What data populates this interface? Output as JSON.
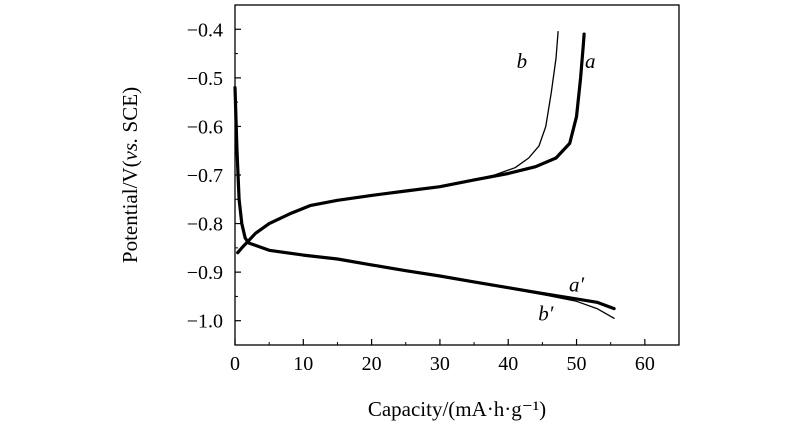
{
  "chart_data": {
    "type": "line",
    "title": "",
    "xlabel": "Capacity/(mA·h·g⁻¹)",
    "ylabel_parts": {
      "pre": "Potential/V(",
      "italic": "vs.",
      "post": " SCE)"
    },
    "xlim": [
      0,
      65
    ],
    "ylim": [
      -1.05,
      -0.35
    ],
    "x_ticks": [
      0,
      10,
      20,
      30,
      40,
      50,
      60
    ],
    "x_tick_labels": [
      "0",
      "10",
      "20",
      "30",
      "40",
      "50",
      "60"
    ],
    "y_ticks": [
      -0.4,
      -0.5,
      -0.6,
      -0.7,
      -0.8,
      -0.9,
      -1.0
    ],
    "y_tick_labels": [
      "−0.4",
      "−0.5",
      "−0.6",
      "−0.7",
      "−0.8",
      "−0.9",
      "−1.0"
    ],
    "grid": false,
    "series": [
      {
        "name": "a",
        "color": "#000000",
        "weight": "thick",
        "points": [
          [
            0.4,
            -0.86
          ],
          [
            1,
            -0.85
          ],
          [
            2,
            -0.835
          ],
          [
            3,
            -0.82
          ],
          [
            5,
            -0.8
          ],
          [
            8,
            -0.78
          ],
          [
            11,
            -0.763
          ],
          [
            15,
            -0.752
          ],
          [
            20,
            -0.742
          ],
          [
            25,
            -0.733
          ],
          [
            30,
            -0.724
          ],
          [
            35,
            -0.71
          ],
          [
            40,
            -0.697
          ],
          [
            44,
            -0.683
          ],
          [
            47,
            -0.665
          ],
          [
            49,
            -0.635
          ],
          [
            50,
            -0.58
          ],
          [
            50.6,
            -0.5
          ],
          [
            51,
            -0.43
          ],
          [
            51.1,
            -0.41
          ]
        ]
      },
      {
        "name": "b",
        "color": "#000000",
        "weight": "thin",
        "points": [
          [
            0.4,
            -0.86
          ],
          [
            1,
            -0.85
          ],
          [
            2,
            -0.835
          ],
          [
            3,
            -0.82
          ],
          [
            5,
            -0.8
          ],
          [
            8,
            -0.78
          ],
          [
            11,
            -0.763
          ],
          [
            15,
            -0.752
          ],
          [
            20,
            -0.742
          ],
          [
            25,
            -0.733
          ],
          [
            30,
            -0.724
          ],
          [
            35,
            -0.71
          ],
          [
            38,
            -0.7
          ],
          [
            41,
            -0.685
          ],
          [
            43,
            -0.665
          ],
          [
            44.5,
            -0.64
          ],
          [
            45.5,
            -0.6
          ],
          [
            46.3,
            -0.53
          ],
          [
            47,
            -0.46
          ],
          [
            47.3,
            -0.405
          ]
        ]
      },
      {
        "name": "a′",
        "color": "#000000",
        "weight": "thick",
        "points": [
          [
            0,
            -0.52
          ],
          [
            0.3,
            -0.65
          ],
          [
            0.6,
            -0.75
          ],
          [
            1,
            -0.8
          ],
          [
            1.5,
            -0.83
          ],
          [
            2,
            -0.84
          ],
          [
            3,
            -0.845
          ],
          [
            5,
            -0.855
          ],
          [
            10,
            -0.865
          ],
          [
            15,
            -0.873
          ],
          [
            20,
            -0.885
          ],
          [
            25,
            -0.897
          ],
          [
            30,
            -0.908
          ],
          [
            35,
            -0.92
          ],
          [
            40,
            -0.932
          ],
          [
            45,
            -0.944
          ],
          [
            50,
            -0.955
          ],
          [
            53,
            -0.962
          ],
          [
            55.5,
            -0.975
          ]
        ]
      },
      {
        "name": "b′",
        "color": "#000000",
        "weight": "thin",
        "points": [
          [
            0,
            -0.52
          ],
          [
            0.3,
            -0.65
          ],
          [
            0.6,
            -0.75
          ],
          [
            1,
            -0.8
          ],
          [
            1.5,
            -0.83
          ],
          [
            2,
            -0.84
          ],
          [
            3,
            -0.845
          ],
          [
            5,
            -0.855
          ],
          [
            10,
            -0.865
          ],
          [
            15,
            -0.873
          ],
          [
            20,
            -0.885
          ],
          [
            25,
            -0.897
          ],
          [
            30,
            -0.908
          ],
          [
            35,
            -0.92
          ],
          [
            40,
            -0.933
          ],
          [
            45,
            -0.946
          ],
          [
            50,
            -0.96
          ],
          [
            53,
            -0.975
          ],
          [
            55.5,
            -0.995
          ]
        ]
      }
    ],
    "annotations": [
      {
        "text": "b",
        "x": 42,
        "y": -0.48
      },
      {
        "text": "a",
        "x": 52,
        "y": -0.48
      },
      {
        "text": "a′",
        "x": 50,
        "y": -0.94
      },
      {
        "text": "b′",
        "x": 45.5,
        "y": -1.0
      }
    ]
  }
}
